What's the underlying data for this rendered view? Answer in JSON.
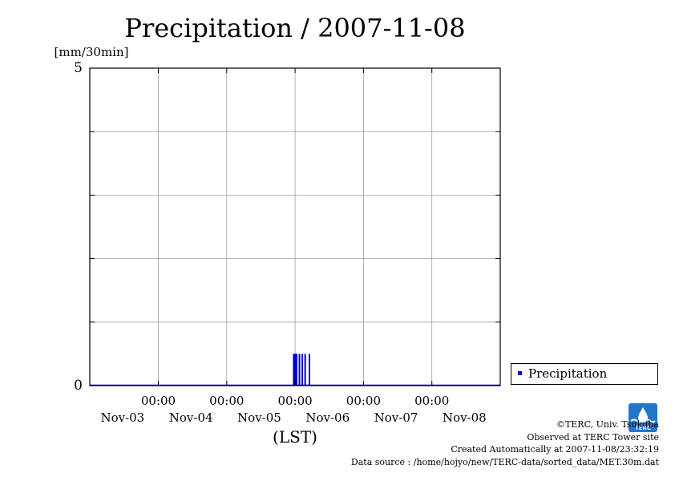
{
  "chart_data": {
    "type": "bar",
    "title": "Precipitation / 2007-11-08",
    "ylabel": "[mm/30min]",
    "xlabel": "(LST)",
    "ylim": [
      0,
      5
    ],
    "y_ticks": [
      0,
      5
    ],
    "x_ticks": [
      {
        "time": "00:00",
        "date": "Nov-04",
        "day": 1
      },
      {
        "time": "00:00",
        "date": "Nov-05",
        "day": 2
      },
      {
        "time": "00:00",
        "date": "Nov-06",
        "day": 3
      },
      {
        "time": "00:00",
        "date": "Nov-07",
        "day": 4
      },
      {
        "time": "00:00",
        "date": "Nov-08",
        "day": 5
      }
    ],
    "date_labels": [
      "Nov-03",
      "Nov-04",
      "Nov-05",
      "Nov-06",
      "Nov-07",
      "Nov-08"
    ],
    "x_range_days": [
      -1,
      6
    ],
    "grid": true,
    "legend": "outside-right",
    "series": [
      {
        "name": "Precipitation",
        "color": "#0000cc",
        "points": [
          {
            "time": "2007-11-05 23:30",
            "value": 0.5
          },
          {
            "time": "2007-11-05 23:50",
            "value": 0.5
          },
          {
            "time": "2007-11-06 00:00",
            "value": 0.5
          },
          {
            "time": "2007-11-06 00:20",
            "value": 0.5
          },
          {
            "time": "2007-11-06 00:30",
            "value": 0.5
          },
          {
            "time": "2007-11-06 01:30",
            "value": 0.5
          },
          {
            "time": "2007-11-06 02:30",
            "value": 0.5
          },
          {
            "time": "2007-11-06 03:30",
            "value": 0.5
          },
          {
            "time": "2007-11-06 05:00",
            "value": 0.5
          }
        ]
      }
    ]
  },
  "credits": {
    "copyright": "©TERC, Univ. Tsukuba",
    "observed": "Observed at TERC Tower site",
    "created": "Created Automatically at 2007-11-08/23:32:19",
    "source": "Data source : /home/hojyo/new/TERC-data/sorted_data/MET.30m.dat"
  },
  "logo": {
    "text": "TERC",
    "color": "#2277cc"
  }
}
